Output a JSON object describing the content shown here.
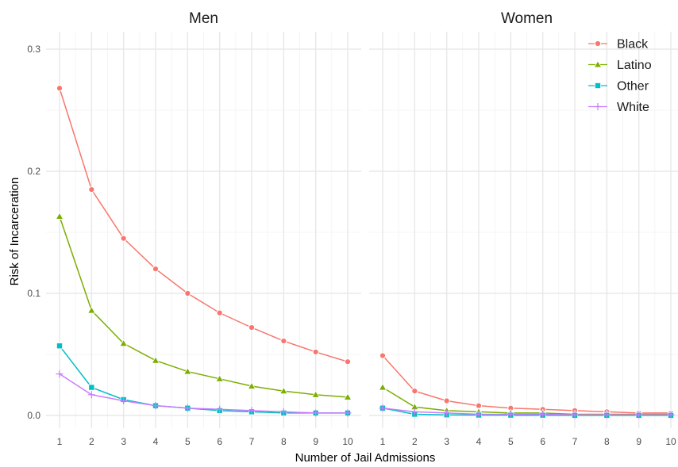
{
  "chart_data": {
    "type": "line",
    "xlabel": "Number of Jail Admissions",
    "ylabel": "Risk of Incarceration",
    "x": [
      1,
      2,
      3,
      4,
      5,
      6,
      7,
      8,
      9,
      10
    ],
    "xlim": [
      1,
      10
    ],
    "ylim": [
      0,
      0.3
    ],
    "yticks": [
      0.0,
      0.1,
      0.2,
      0.3
    ],
    "ytick_labels": [
      "0.0",
      "0.1",
      "0.2",
      "0.3"
    ],
    "xtick_labels": [
      "1",
      "2",
      "3",
      "4",
      "5",
      "6",
      "7",
      "8",
      "9",
      "10"
    ],
    "grid": true,
    "legend_position": "top-right",
    "legend": [
      {
        "name": "Black",
        "color": "#F8766D",
        "marker": "circle"
      },
      {
        "name": "Latino",
        "color": "#7CAE00",
        "marker": "triangle"
      },
      {
        "name": "Other",
        "color": "#00BFC4",
        "marker": "square"
      },
      {
        "name": "White",
        "color": "#C77CFF",
        "marker": "plus"
      }
    ],
    "panels": [
      {
        "title": "Men",
        "series": [
          {
            "name": "Black",
            "values": [
              0.268,
              0.185,
              0.145,
              0.12,
              0.1,
              0.084,
              0.072,
              0.061,
              0.052,
              0.044
            ]
          },
          {
            "name": "Latino",
            "values": [
              0.163,
              0.086,
              0.059,
              0.045,
              0.036,
              0.03,
              0.024,
              0.02,
              0.017,
              0.015
            ]
          },
          {
            "name": "Other",
            "values": [
              0.057,
              0.023,
              0.013,
              0.008,
              0.006,
              0.004,
              0.003,
              0.002,
              0.002,
              0.002
            ]
          },
          {
            "name": "White",
            "values": [
              0.034,
              0.017,
              0.012,
              0.008,
              0.006,
              0.005,
              0.004,
              0.003,
              0.002,
              0.002
            ]
          }
        ]
      },
      {
        "title": "Women",
        "series": [
          {
            "name": "Black",
            "values": [
              0.049,
              0.02,
              0.012,
              0.008,
              0.006,
              0.005,
              0.004,
              0.003,
              0.002,
              0.002
            ]
          },
          {
            "name": "Latino",
            "values": [
              0.023,
              0.007,
              0.004,
              0.003,
              0.002,
              0.002,
              0.001,
              0.001,
              0.001,
              0.001
            ]
          },
          {
            "name": "Other",
            "values": [
              0.006,
              0.001,
              0.0005,
              0.0003,
              0.0002,
              0.0002,
              0.0001,
              0.0001,
              0.0001,
              0.0001
            ]
          },
          {
            "name": "White",
            "values": [
              0.006,
              0.003,
              0.002,
              0.001,
              0.001,
              0.001,
              0.0005,
              0.0005,
              0.0005,
              0.0005
            ]
          }
        ]
      }
    ]
  }
}
